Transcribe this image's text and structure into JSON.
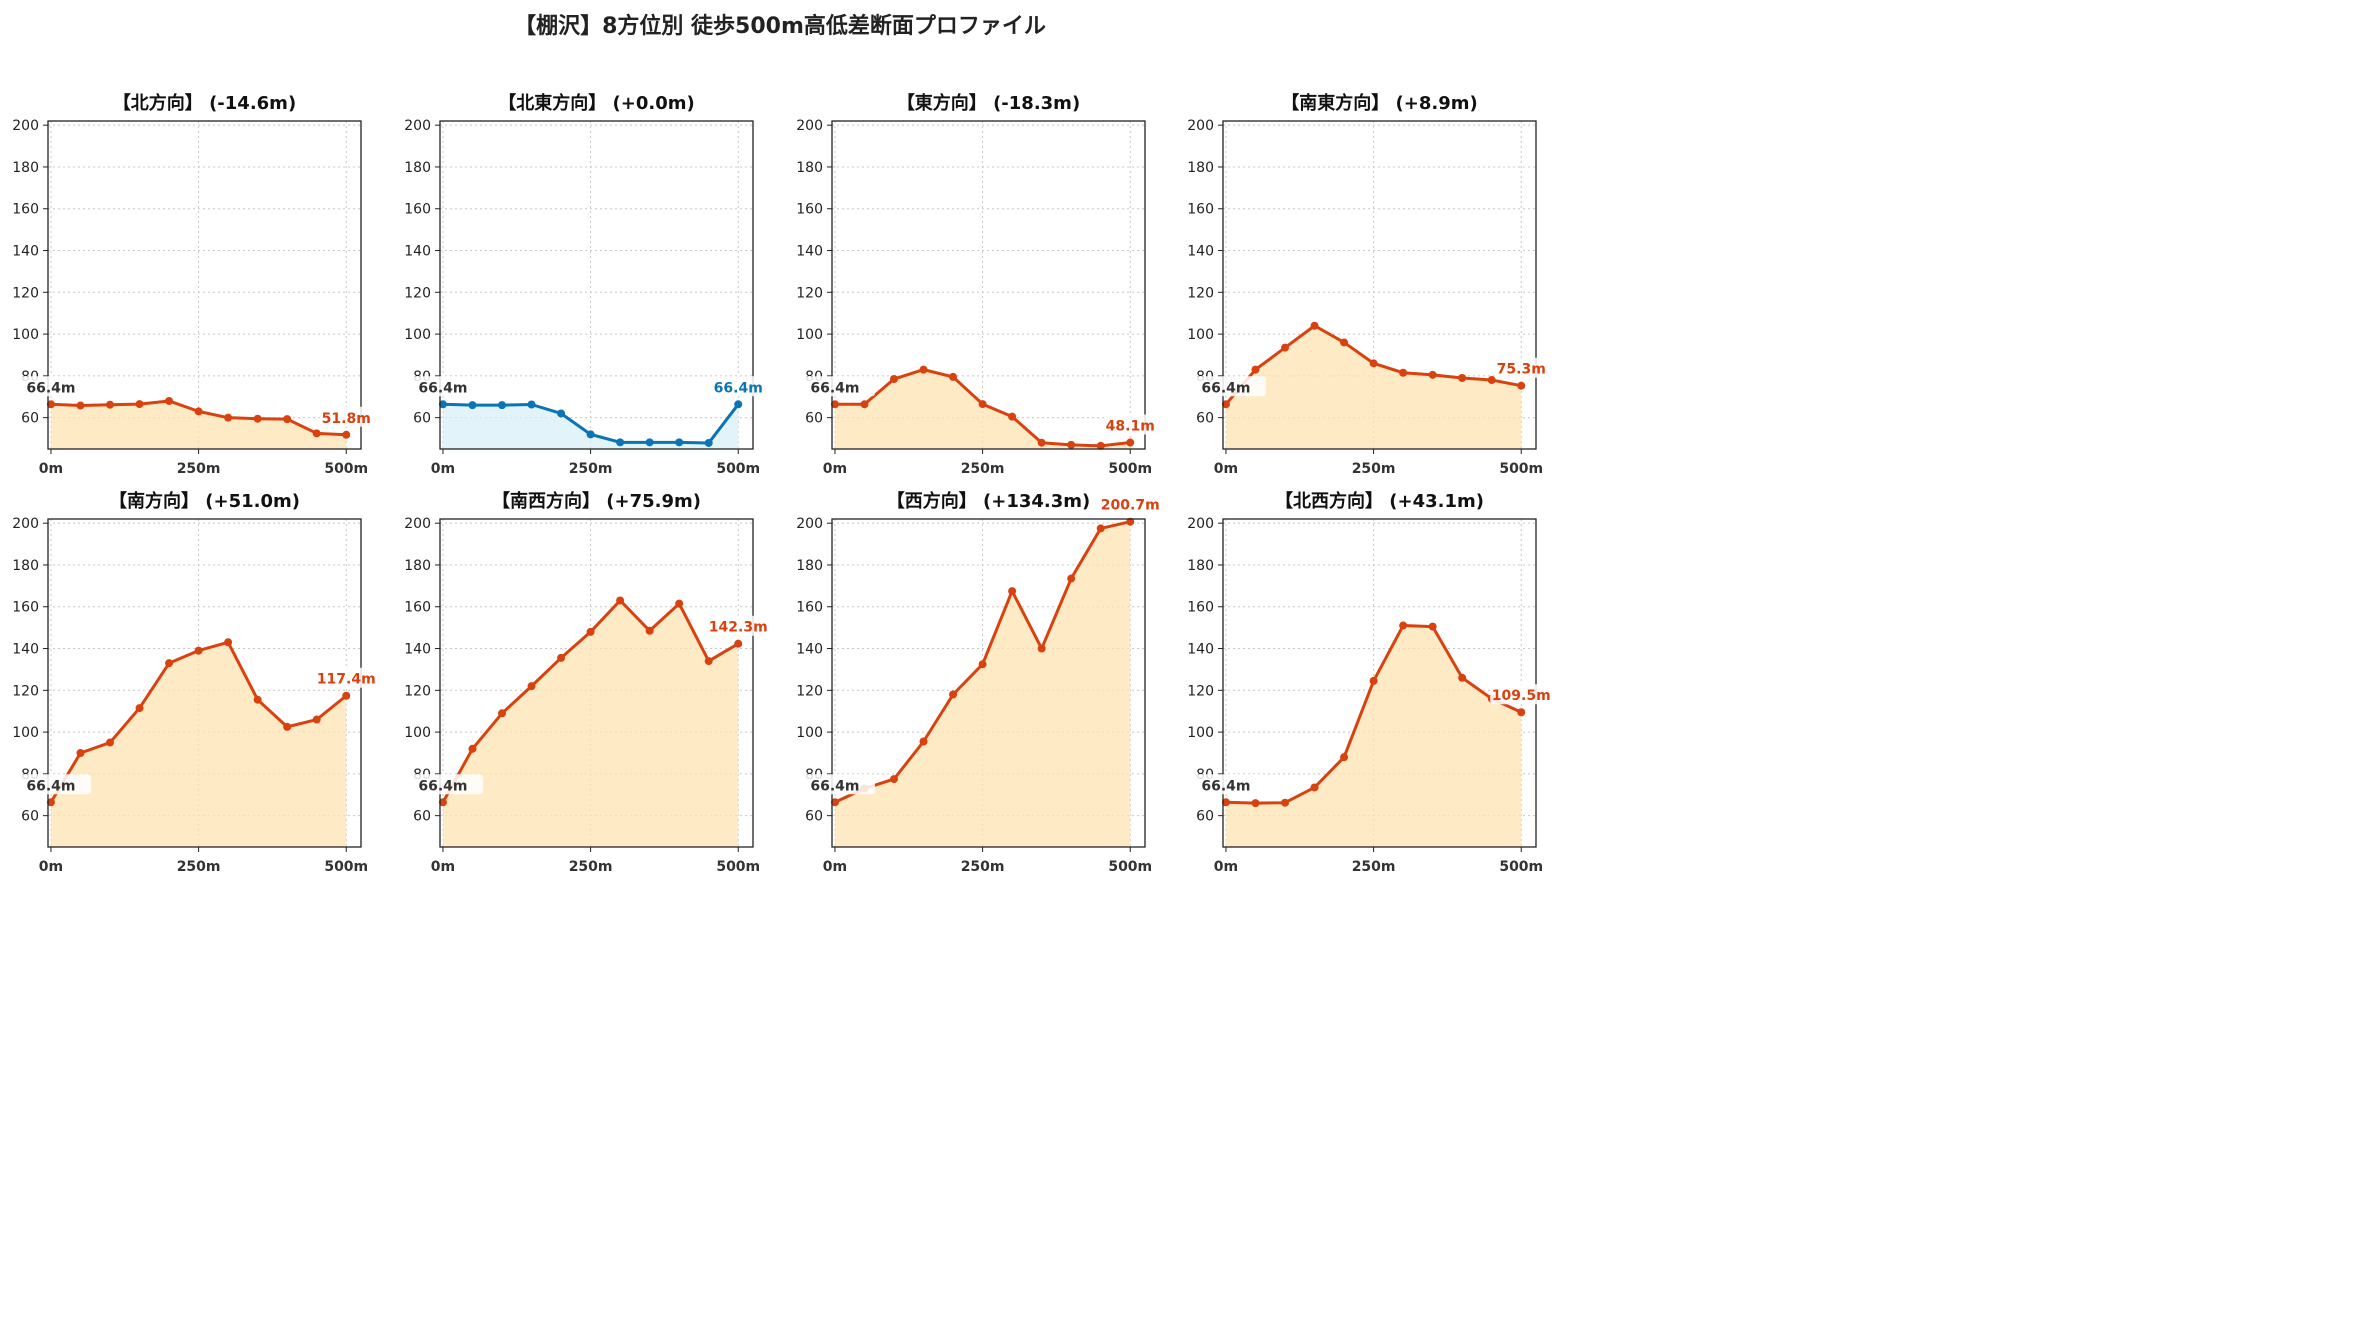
{
  "title": "【棚沢】8方位別 徒歩500m高低差断面プロファイル",
  "colors": {
    "down": "#d9420f",
    "flat": "#0a74b6",
    "fill_down": "#ffe3b3",
    "fill_flat": "#d8f0f7",
    "start_label": "#333333"
  },
  "chart_data": [
    {
      "type": "area",
      "title": "【北方向】 (-14.6m)",
      "x": [
        0,
        50,
        100,
        150,
        200,
        250,
        300,
        350,
        400,
        450,
        500
      ],
      "values": [
        66.4,
        65.8,
        66.2,
        66.5,
        68.0,
        63.0,
        60.0,
        59.5,
        59.3,
        52.5,
        51.8
      ],
      "start_label": "66.4m",
      "end_label": "51.8m",
      "style": "down",
      "ylim": [
        45,
        202
      ],
      "yticks": [
        "60",
        "80",
        "100",
        "120",
        "140",
        "160",
        "180",
        "200"
      ],
      "xticks": [
        "0m",
        "250m",
        "500m"
      ]
    },
    {
      "type": "area",
      "title": "【北東方向】 (+0.0m)",
      "x": [
        0,
        50,
        100,
        150,
        200,
        250,
        300,
        350,
        400,
        450,
        500
      ],
      "values": [
        66.4,
        66.0,
        66.0,
        66.3,
        62.0,
        52.0,
        48.2,
        48.2,
        48.2,
        47.9,
        66.4
      ],
      "start_label": "66.4m",
      "end_label": "66.4m",
      "style": "flat",
      "ylim": [
        45,
        202
      ],
      "yticks": [
        "60",
        "80",
        "100",
        "120",
        "140",
        "160",
        "180",
        "200"
      ],
      "xticks": [
        "0m",
        "250m",
        "500m"
      ]
    },
    {
      "type": "area",
      "title": "【東方向】 (-18.3m)",
      "x": [
        0,
        50,
        100,
        150,
        200,
        250,
        300,
        350,
        400,
        450,
        500
      ],
      "values": [
        66.4,
        66.4,
        78.5,
        83.0,
        79.5,
        66.5,
        60.5,
        48.0,
        47.0,
        46.5,
        48.1
      ],
      "start_label": "66.4m",
      "end_label": "48.1m",
      "style": "down",
      "ylim": [
        45,
        202
      ],
      "yticks": [
        "60",
        "80",
        "100",
        "120",
        "140",
        "160",
        "180",
        "200"
      ],
      "xticks": [
        "0m",
        "250m",
        "500m"
      ]
    },
    {
      "type": "area",
      "title": "【南東方向】 (+8.9m)",
      "x": [
        0,
        50,
        100,
        150,
        200,
        250,
        300,
        350,
        400,
        450,
        500
      ],
      "values": [
        66.4,
        83.0,
        93.5,
        104.0,
        96.0,
        86.0,
        81.5,
        80.5,
        79.0,
        78.0,
        75.3
      ],
      "start_label": "66.4m",
      "end_label": "75.3m",
      "style": "down",
      "ylim": [
        45,
        202
      ],
      "yticks": [
        "60",
        "80",
        "100",
        "120",
        "140",
        "160",
        "180",
        "200"
      ],
      "xticks": [
        "0m",
        "250m",
        "500m"
      ]
    },
    {
      "type": "area",
      "title": "【南方向】 (+51.0m)",
      "x": [
        0,
        50,
        100,
        150,
        200,
        250,
        300,
        350,
        400,
        450,
        500
      ],
      "values": [
        66.4,
        90.0,
        95.0,
        111.5,
        133.0,
        139.0,
        143.0,
        115.5,
        102.5,
        106.0,
        117.4
      ],
      "start_label": "66.4m",
      "end_label": "117.4m",
      "style": "down",
      "ylim": [
        45,
        202
      ],
      "yticks": [
        "60",
        "80",
        "100",
        "120",
        "140",
        "160",
        "180",
        "200"
      ],
      "xticks": [
        "0m",
        "250m",
        "500m"
      ]
    },
    {
      "type": "area",
      "title": "【南西方向】 (+75.9m)",
      "x": [
        0,
        50,
        100,
        150,
        200,
        250,
        300,
        350,
        400,
        450,
        500
      ],
      "values": [
        66.4,
        92.0,
        109.0,
        122.0,
        135.5,
        148.0,
        163.0,
        148.5,
        161.5,
        134.0,
        142.3
      ],
      "start_label": "66.4m",
      "end_label": "142.3m",
      "style": "down",
      "ylim": [
        45,
        202
      ],
      "yticks": [
        "60",
        "80",
        "100",
        "120",
        "140",
        "160",
        "180",
        "200"
      ],
      "xticks": [
        "0m",
        "250m",
        "500m"
      ]
    },
    {
      "type": "area",
      "title": "【西方向】 (+134.3m)",
      "x": [
        0,
        50,
        100,
        150,
        200,
        250,
        300,
        350,
        400,
        450,
        500
      ],
      "values": [
        66.4,
        73.0,
        77.5,
        95.5,
        118.0,
        132.5,
        167.5,
        140.0,
        173.5,
        197.5,
        200.7
      ],
      "start_label": "66.4m",
      "end_label": "200.7m",
      "style": "down",
      "ylim": [
        45,
        202
      ],
      "yticks": [
        "60",
        "80",
        "100",
        "120",
        "140",
        "160",
        "180",
        "200"
      ],
      "xticks": [
        "0m",
        "250m",
        "500m"
      ]
    },
    {
      "type": "area",
      "title": "【北西方向】 (+43.1m)",
      "x": [
        0,
        50,
        100,
        150,
        200,
        250,
        300,
        350,
        400,
        450,
        500
      ],
      "values": [
        66.4,
        66.0,
        66.2,
        73.5,
        88.0,
        124.5,
        151.0,
        150.5,
        126.0,
        116.0,
        109.5
      ],
      "start_label": "66.4m",
      "end_label": "109.5m",
      "style": "down",
      "ylim": [
        45,
        202
      ],
      "yticks": [
        "60",
        "80",
        "100",
        "120",
        "140",
        "160",
        "180",
        "200"
      ],
      "xticks": [
        "0m",
        "250m",
        "500m"
      ]
    }
  ]
}
